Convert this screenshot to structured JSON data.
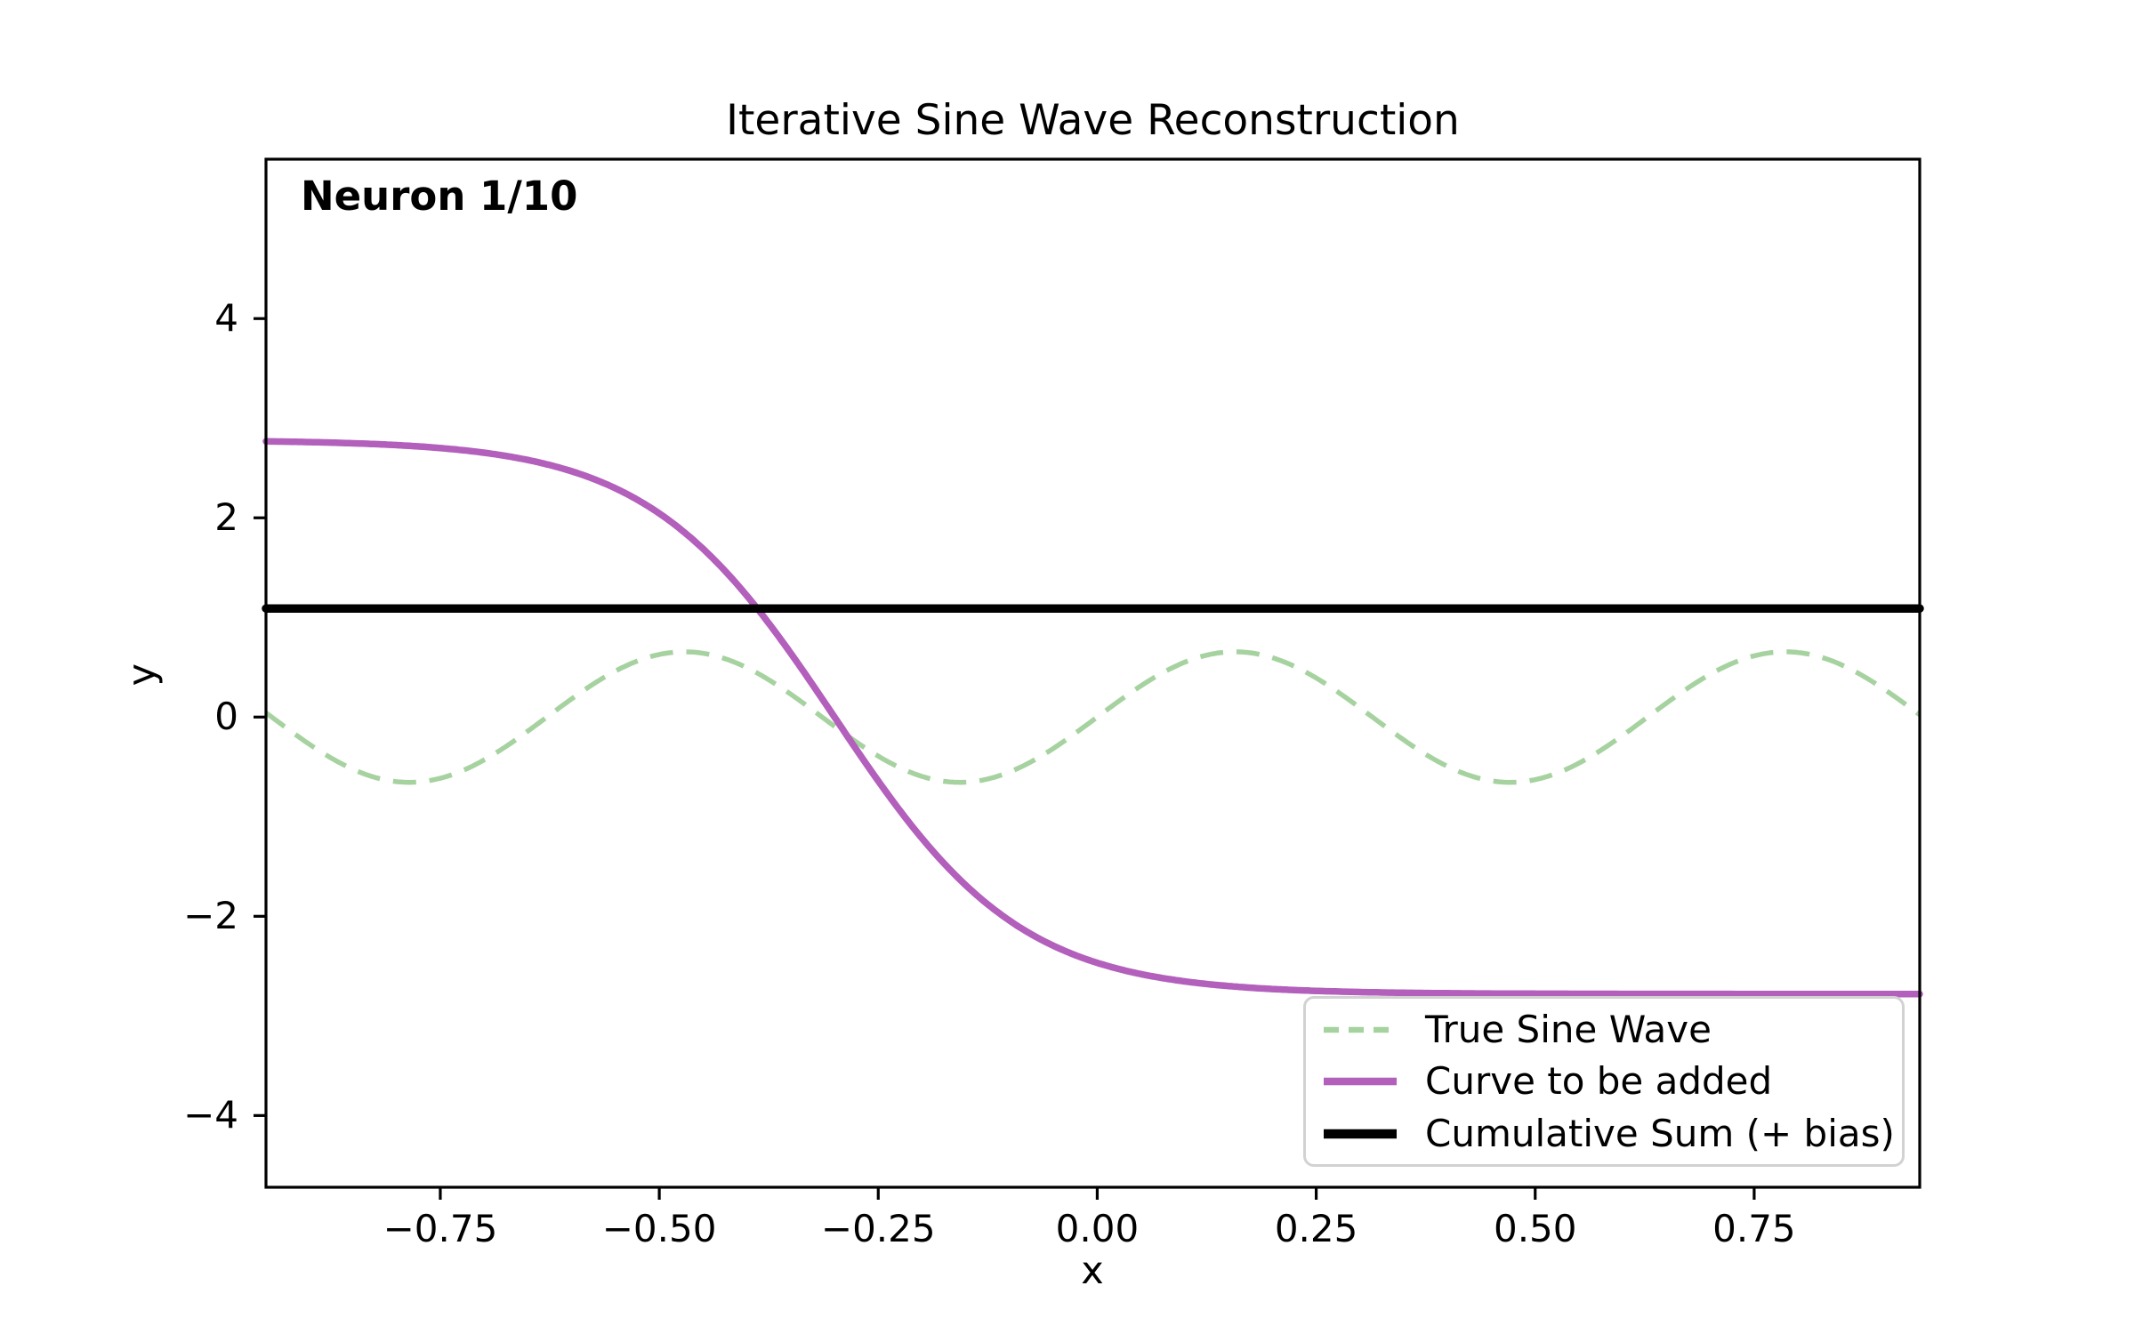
{
  "figure": {
    "title": "Iterative Sine Wave Reconstruction",
    "annotation": "Neuron 1/10",
    "background_color": "#ffffff",
    "legend_border_color": "#d2d2d2"
  },
  "chart_data": {
    "type": "line",
    "title": "Iterative Sine Wave Reconstruction",
    "xlabel": "x",
    "ylabel": "y",
    "annotation": "Neuron 1/10",
    "grid": false,
    "legend_position": "lower right",
    "xlim": [
      -0.949,
      0.939
    ],
    "ylim": [
      -4.72,
      5.6
    ],
    "x_ticks": {
      "values": [
        -0.75,
        -0.5,
        -0.25,
        0,
        0.25,
        0.5,
        0.75
      ],
      "labels": [
        "−0.75",
        "−0.50",
        "−0.25",
        "0.00",
        "0.25",
        "0.50",
        "0.75"
      ]
    },
    "y_ticks": {
      "values": [
        -4,
        -2,
        0,
        2,
        4
      ],
      "labels": [
        "−4",
        "−2",
        "0",
        "2",
        "4"
      ]
    },
    "series": [
      {
        "name": "True Sine Wave",
        "style": "dashed",
        "color": "#A6D2A0",
        "linewidth": 5.5,
        "function": {
          "kind": "sine",
          "formula": "y = 0.655·sin(10·x)",
          "amplitude": 0.655,
          "angular_frequency": 10,
          "phase": 0,
          "offset": 0
        },
        "key_points": {
          "peaks_x": [
            -0.471,
            0.157,
            0.785
          ],
          "troughs_x": [
            -0.785,
            -0.157,
            0.471
          ],
          "peak_y": 0.655,
          "trough_y": -0.655
        }
      },
      {
        "name": "Curve to be added",
        "style": "solid",
        "color": "#B35FBC",
        "linewidth": 7.5,
        "function": {
          "kind": "tanh",
          "formula": "y = −2.78·tanh(4.7·(x + 0.30))",
          "amplitude": -2.78,
          "gain": 4.7,
          "center_x": -0.3,
          "offset": 0
        },
        "key_points": {
          "left_plateau_y": 2.78,
          "right_plateau_y": -2.78,
          "zero_crossing_x": -0.3
        }
      },
      {
        "name": "Cumulative Sum (+ bias)",
        "style": "solid",
        "color": "#000000",
        "linewidth": 9.5,
        "function": {
          "kind": "constant",
          "formula": "y = 1.09",
          "value": 1.09
        },
        "key_points": {
          "constant_y": 1.09
        }
      }
    ]
  }
}
